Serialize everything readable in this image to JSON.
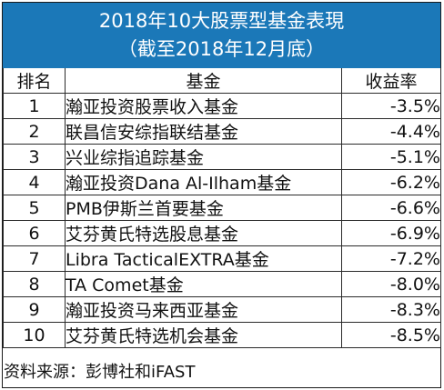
{
  "title": {
    "line1": "2018年10大股票型基金表現",
    "line2": "（截至2018年12月底）"
  },
  "table": {
    "headers": {
      "rank": "排名",
      "fund": "基金",
      "return": "收益率"
    },
    "rows": [
      {
        "rank": "1",
        "fund": "瀚亚投资股票收入基金",
        "return": "-3.5%"
      },
      {
        "rank": "2",
        "fund": "联昌信安综指联结基金",
        "return": "-4.4%"
      },
      {
        "rank": "3",
        "fund": "兴业综指追踪基金",
        "return": "-5.1%"
      },
      {
        "rank": "4",
        "fund": "瀚亚投资Dana Al-Ilham基金",
        "return": "-6.2%"
      },
      {
        "rank": "5",
        "fund": "PMB伊斯兰首要基金",
        "return": "-6.6%"
      },
      {
        "rank": "6",
        "fund": "艾芬黄氏特选股息基金",
        "return": "-6.9%"
      },
      {
        "rank": "7",
        "fund": "Libra TacticalEXTRA基金",
        "return": "-7.2%"
      },
      {
        "rank": "8",
        "fund": "TA Comet基金",
        "return": "-8.0%"
      },
      {
        "rank": "9",
        "fund": "瀚亚投资马来西亚基金",
        "return": "-8.3%"
      },
      {
        "rank": "10",
        "fund": "艾芬黄氏特选机会基金",
        "return": "-8.5%"
      }
    ]
  },
  "source": "资料来源：彭博社和iFAST",
  "colors": {
    "title_background": "#1b78b8",
    "title_text": "#ffffff",
    "border": "#2a2a2a"
  }
}
